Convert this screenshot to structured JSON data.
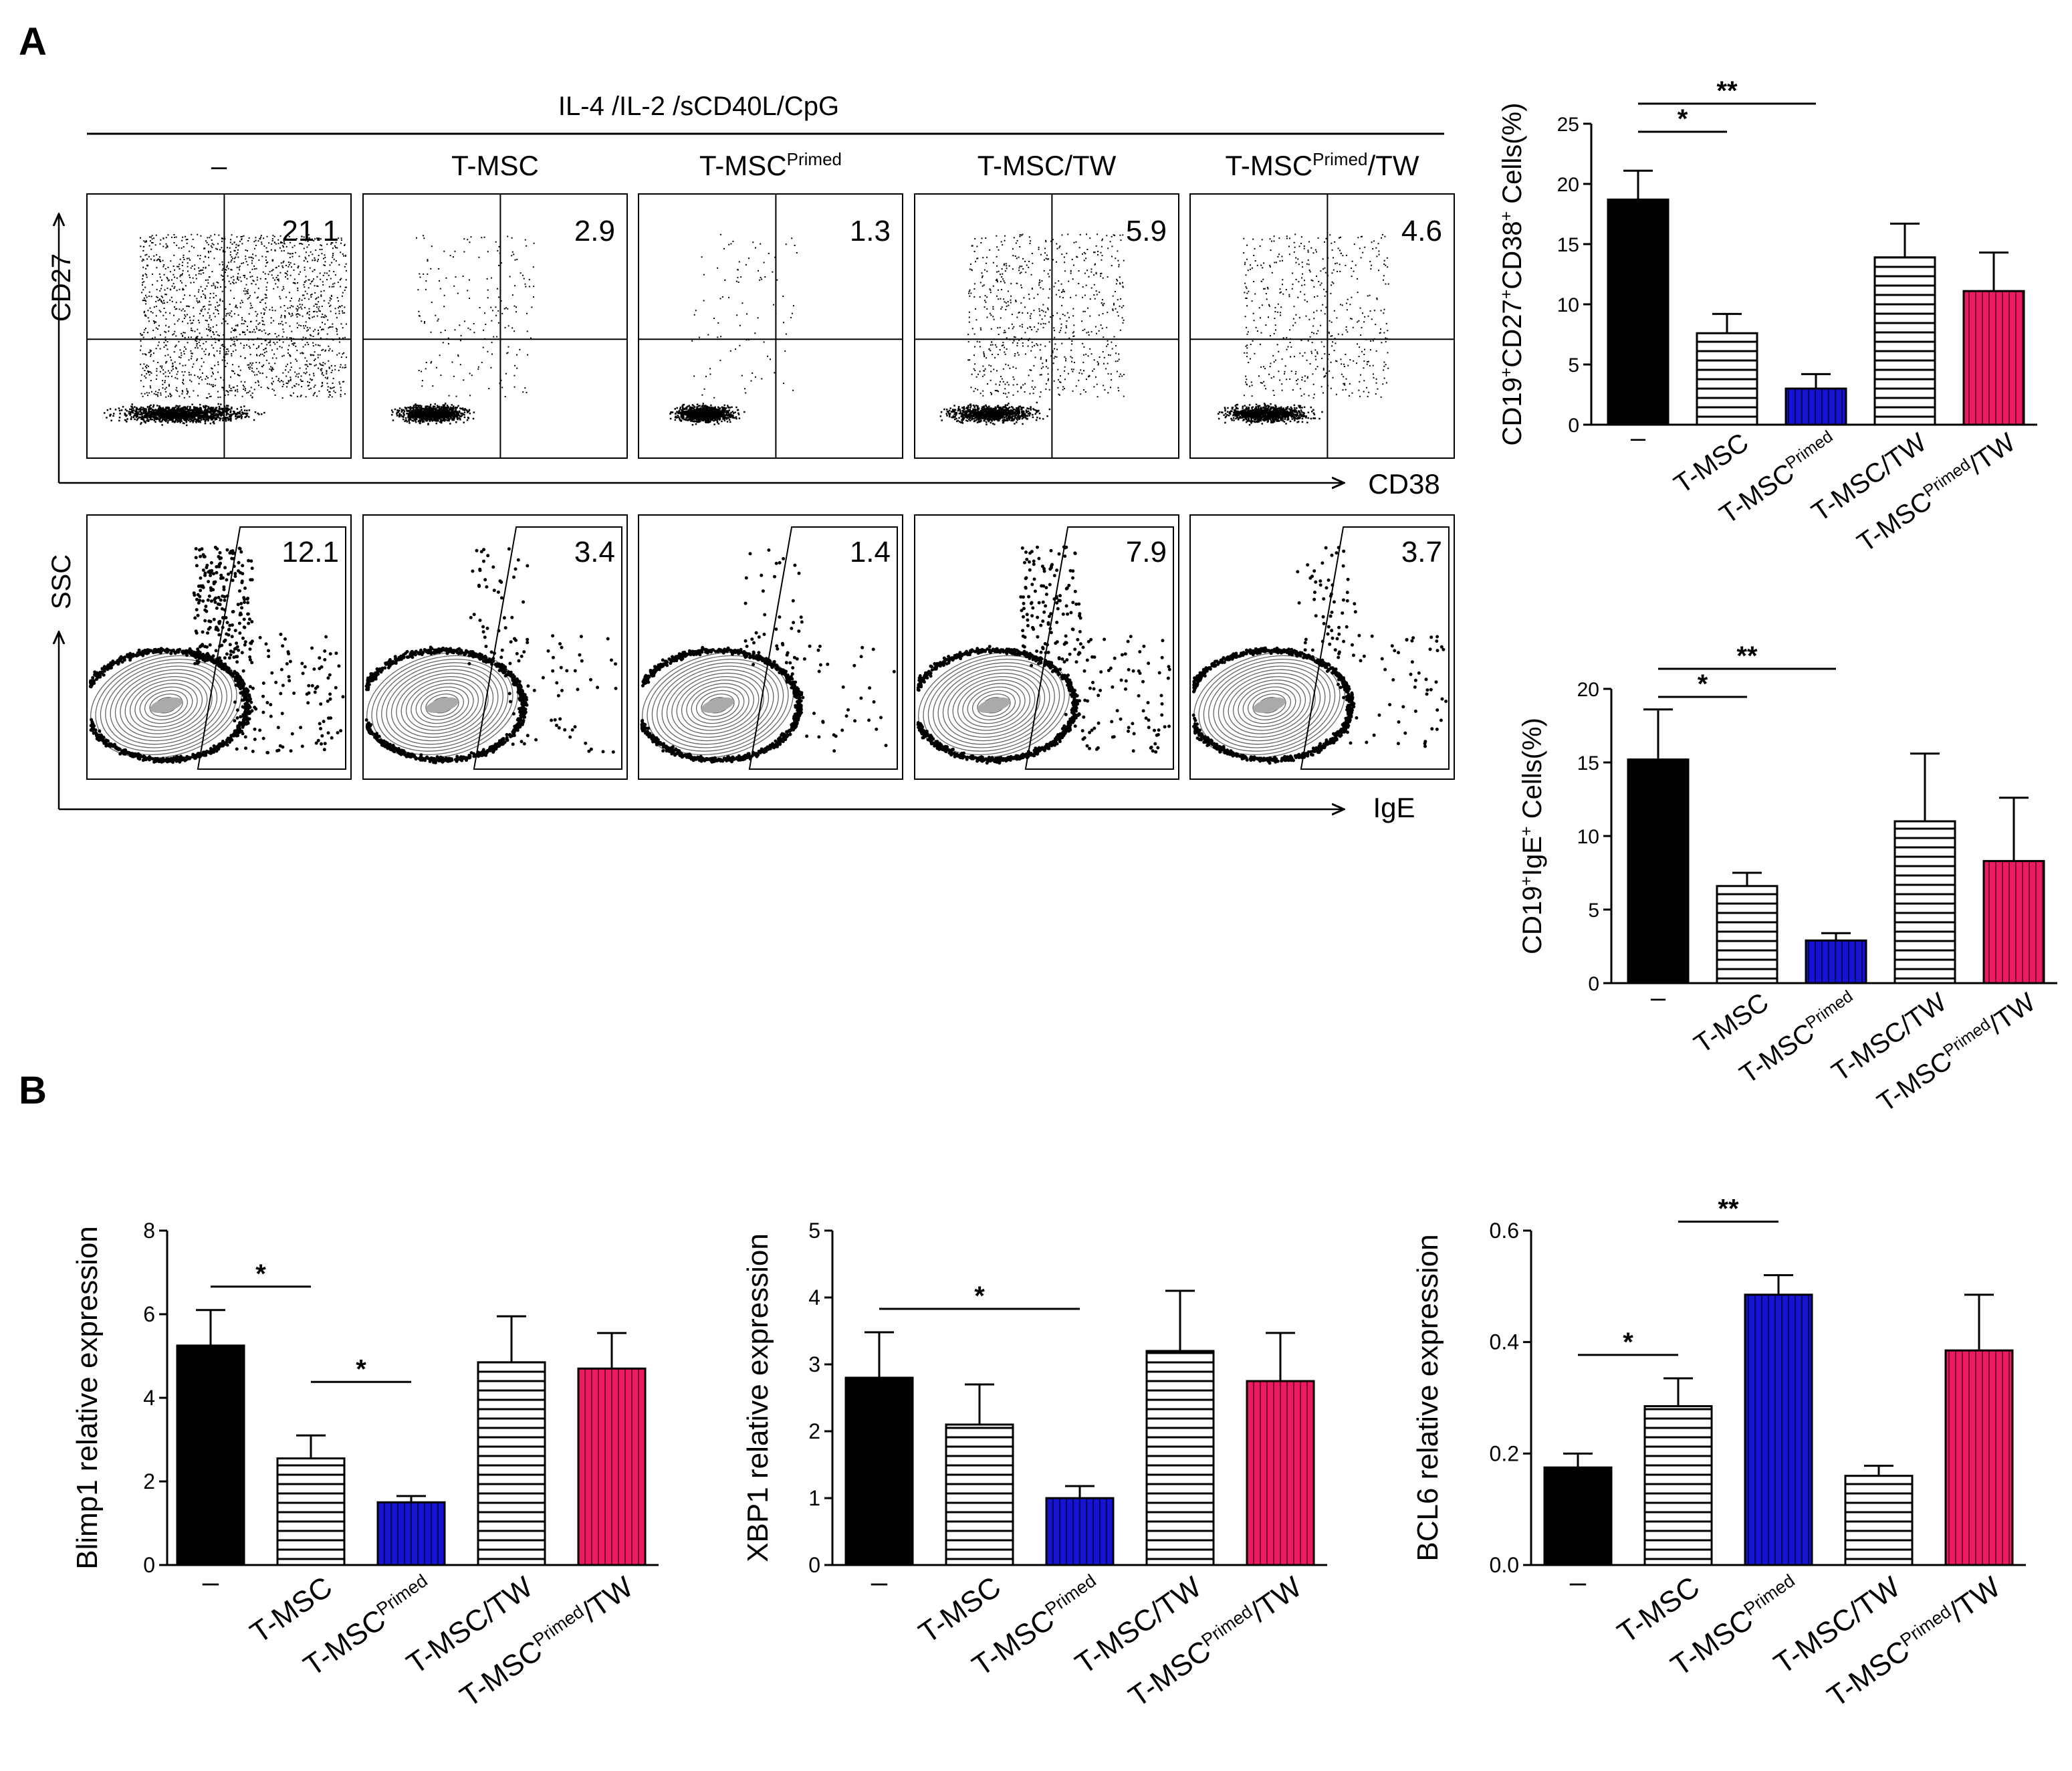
{
  "panel_labels": {
    "a": "A",
    "b": "B"
  },
  "stim_header": "IL-4 /IL-2 /sCD40L/CpG",
  "flow": {
    "col_labels": [
      {
        "main": "–",
        "sup": "",
        "tail": ""
      },
      {
        "main": "T-MSC",
        "sup": "",
        "tail": ""
      },
      {
        "main": "T-MSC",
        "sup": "Primed",
        "tail": ""
      },
      {
        "main": "T-MSC/TW",
        "sup": "",
        "tail": ""
      },
      {
        "main": "T-MSC",
        "sup": "Primed",
        "tail": "/TW"
      }
    ],
    "row1_values": [
      "21.1",
      "2.9",
      "1.3",
      "5.9",
      "4.6"
    ],
    "row2_values": [
      "12.1",
      "3.4",
      "1.4",
      "7.9",
      "3.7"
    ],
    "row1_yaxis": "CD27",
    "row1_xaxis": "CD38",
    "row2_yaxis": "SSC",
    "row2_xaxis": "IgE"
  },
  "colors": {
    "control": "#000000",
    "tmsc_hatch": "#000000",
    "primed": "#1414d2",
    "tw_hatch": "#000000",
    "primed_tw": "#ee1a62",
    "bg": "#ffffff"
  },
  "chart_data": [
    {
      "id": "cd27cd38",
      "type": "bar",
      "ylabel_parts": [
        "CD19",
        "+",
        "CD27",
        "+",
        "CD38",
        "+",
        " Cells(%)"
      ],
      "categories": [
        "–",
        "T-MSC",
        "T-MSCPrimed",
        "T-MSC/TW",
        "T-MSCPrimed/TW"
      ],
      "values": [
        18.7,
        7.6,
        3.0,
        13.9,
        11.1
      ],
      "errors": [
        2.4,
        1.6,
        1.2,
        2.8,
        3.2
      ],
      "ylim": [
        0,
        25
      ],
      "yticks": [
        "0",
        "5",
        "10",
        "15",
        "20",
        "25"
      ],
      "significance": [
        {
          "from": 0,
          "to": 1,
          "label": "*"
        },
        {
          "from": 0,
          "to": 2,
          "label": "**"
        }
      ]
    },
    {
      "id": "ige",
      "type": "bar",
      "ylabel_parts": [
        "CD19",
        "+",
        "IgE",
        "+",
        " Cells(%)"
      ],
      "categories": [
        "–",
        "T-MSC",
        "T-MSCPrimed",
        "T-MSC/TW",
        "T-MSCPrimed/TW"
      ],
      "values": [
        15.2,
        6.6,
        2.9,
        11.0,
        8.3
      ],
      "errors": [
        3.4,
        0.9,
        0.5,
        4.6,
        4.3
      ],
      "ylim": [
        0,
        20
      ],
      "yticks": [
        "0",
        "5",
        "10",
        "15",
        "20"
      ],
      "significance": [
        {
          "from": 0,
          "to": 1,
          "label": "*"
        },
        {
          "from": 0,
          "to": 2,
          "label": "**"
        }
      ]
    },
    {
      "id": "blimp1",
      "type": "bar",
      "ylabel_parts": [
        "Blimp1 relative expression"
      ],
      "categories": [
        "–",
        "T-MSC",
        "T-MSCPrimed",
        "T-MSC/TW",
        "T-MSCPrimed/TW"
      ],
      "values": [
        5.25,
        2.55,
        1.5,
        4.85,
        4.7
      ],
      "errors": [
        0.85,
        0.55,
        0.15,
        1.1,
        0.85
      ],
      "ylim": [
        0,
        8
      ],
      "yticks": [
        "0",
        "2",
        "4",
        "6",
        "8"
      ],
      "significance": [
        {
          "from": 0,
          "to": 1,
          "label": "*"
        },
        {
          "from": 1,
          "to": 2,
          "label": "*"
        }
      ]
    },
    {
      "id": "xbp1",
      "type": "bar",
      "ylabel_parts": [
        "XBP1 relative expression"
      ],
      "categories": [
        "–",
        "T-MSC",
        "T-MSCPrimed",
        "T-MSC/TW",
        "T-MSCPrimed/TW"
      ],
      "values": [
        2.8,
        2.1,
        1.0,
        3.2,
        2.75
      ],
      "errors": [
        0.68,
        0.6,
        0.18,
        0.9,
        0.72
      ],
      "ylim": [
        0,
        5
      ],
      "yticks": [
        "0",
        "1",
        "2",
        "3",
        "4",
        "5"
      ],
      "significance": [
        {
          "from": 0,
          "to": 2,
          "label": "*"
        }
      ]
    },
    {
      "id": "bcl6",
      "type": "bar",
      "ylabel_parts": [
        "BCL6  relative expression"
      ],
      "categories": [
        "–",
        "T-MSC",
        "T-MSCPrimed",
        "T-MSC/TW",
        "T-MSCPrimed/TW"
      ],
      "values": [
        0.175,
        0.285,
        0.485,
        0.16,
        0.385
      ],
      "errors": [
        0.025,
        0.05,
        0.035,
        0.018,
        0.1
      ],
      "ylim": [
        0,
        0.6
      ],
      "yticks": [
        "0.0",
        "0.2",
        "0.4",
        "0.6"
      ],
      "significance": [
        {
          "from": 0,
          "to": 1,
          "label": "*"
        },
        {
          "from": 1,
          "to": 2,
          "label": "**"
        }
      ]
    }
  ]
}
